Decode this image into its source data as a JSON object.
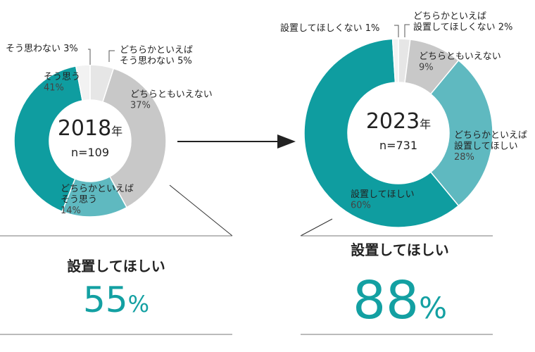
{
  "chart_data": [
    {
      "type": "pie",
      "donut": true,
      "year": "2018",
      "year_suffix": "年",
      "n_label": "n=109",
      "slices": [
        {
          "label": "どちらかといえば\nそう思わない",
          "pct_label": "5%",
          "value": 5,
          "color": "#e6e6e6"
        },
        {
          "label": "どちらともいえない",
          "pct_label": "37%",
          "value": 37,
          "color": "#c8c8c8"
        },
        {
          "label": "どちらかといえば\nそう思う",
          "pct_label": "14%",
          "value": 14,
          "color": "#5fb9c0"
        },
        {
          "label": "そう思う",
          "pct_label": "41%",
          "value": 41,
          "color": "#0f9da0"
        },
        {
          "label": "そう思わない",
          "pct_label": "3%",
          "value": 3,
          "color": "#f2f2f2"
        }
      ]
    },
    {
      "type": "pie",
      "donut": true,
      "year": "2023",
      "year_suffix": "年",
      "n_label": "n=731",
      "slices": [
        {
          "label": "どちらかといえば\n設置してほしくない",
          "pct_label": "2%",
          "value": 2,
          "color": "#e6e6e6"
        },
        {
          "label": "どちらともいえない",
          "pct_label": "9%",
          "value": 9,
          "color": "#c8c8c8"
        },
        {
          "label": "どちらかといえば\n設置してほしい",
          "pct_label": "28%",
          "value": 28,
          "color": "#5fb9c0"
        },
        {
          "label": "設置してほしい",
          "pct_label": "60%",
          "value": 60,
          "color": "#0f9da0"
        },
        {
          "label": "設置してほしくない",
          "pct_label": "1%",
          "value": 1,
          "color": "#f2f2f2"
        }
      ]
    }
  ],
  "summary": [
    {
      "label": "設置してほしい",
      "value": "55",
      "unit": "%"
    },
    {
      "label": "設置してほしい",
      "value": "88",
      "unit": "%"
    }
  ]
}
